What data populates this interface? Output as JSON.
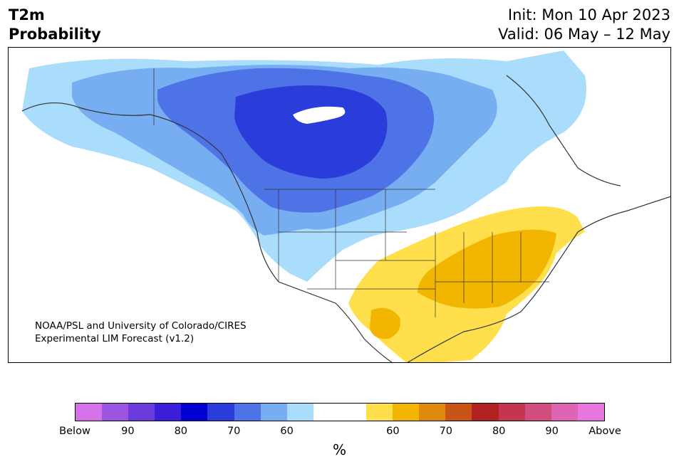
{
  "title": {
    "left_line1": "T2m",
    "left_line2": "Probability",
    "right_line1": "Init: Mon 10 Apr 2023",
    "right_line2": "Valid: 06 May – 12 May"
  },
  "credit": {
    "line1": "NOAA/PSL and University of Colorado/CIRES",
    "line2": "Experimental LIM Forecast (v1.2)"
  },
  "colorbar": {
    "label": "%",
    "colors": [
      "#d672e8",
      "#9a54e0",
      "#6a3adb",
      "#3a1ed8",
      "#0000d2",
      "#2a3ddb",
      "#4e73e7",
      "#77aef2",
      "#aadcfb",
      "#ffffff",
      "#ffffff",
      "#ffe04c",
      "#f2b600",
      "#df8a0c",
      "#c85415",
      "#b22222",
      "#c43550",
      "#d14d80",
      "#de65b3",
      "#e876de"
    ],
    "ticks": [
      "Below",
      "90",
      "80",
      "70",
      "60",
      "60",
      "70",
      "80",
      "90",
      "Above"
    ]
  },
  "map_colors": {
    "land": "#ffffff",
    "blue_60": "#aadcfb",
    "blue_65": "#77aef2",
    "blue_70": "#4e73e7",
    "blue_75": "#2a3ddb",
    "yellow_60": "#ffe04c",
    "yellow_65": "#f2b600",
    "border": "#333333"
  }
}
